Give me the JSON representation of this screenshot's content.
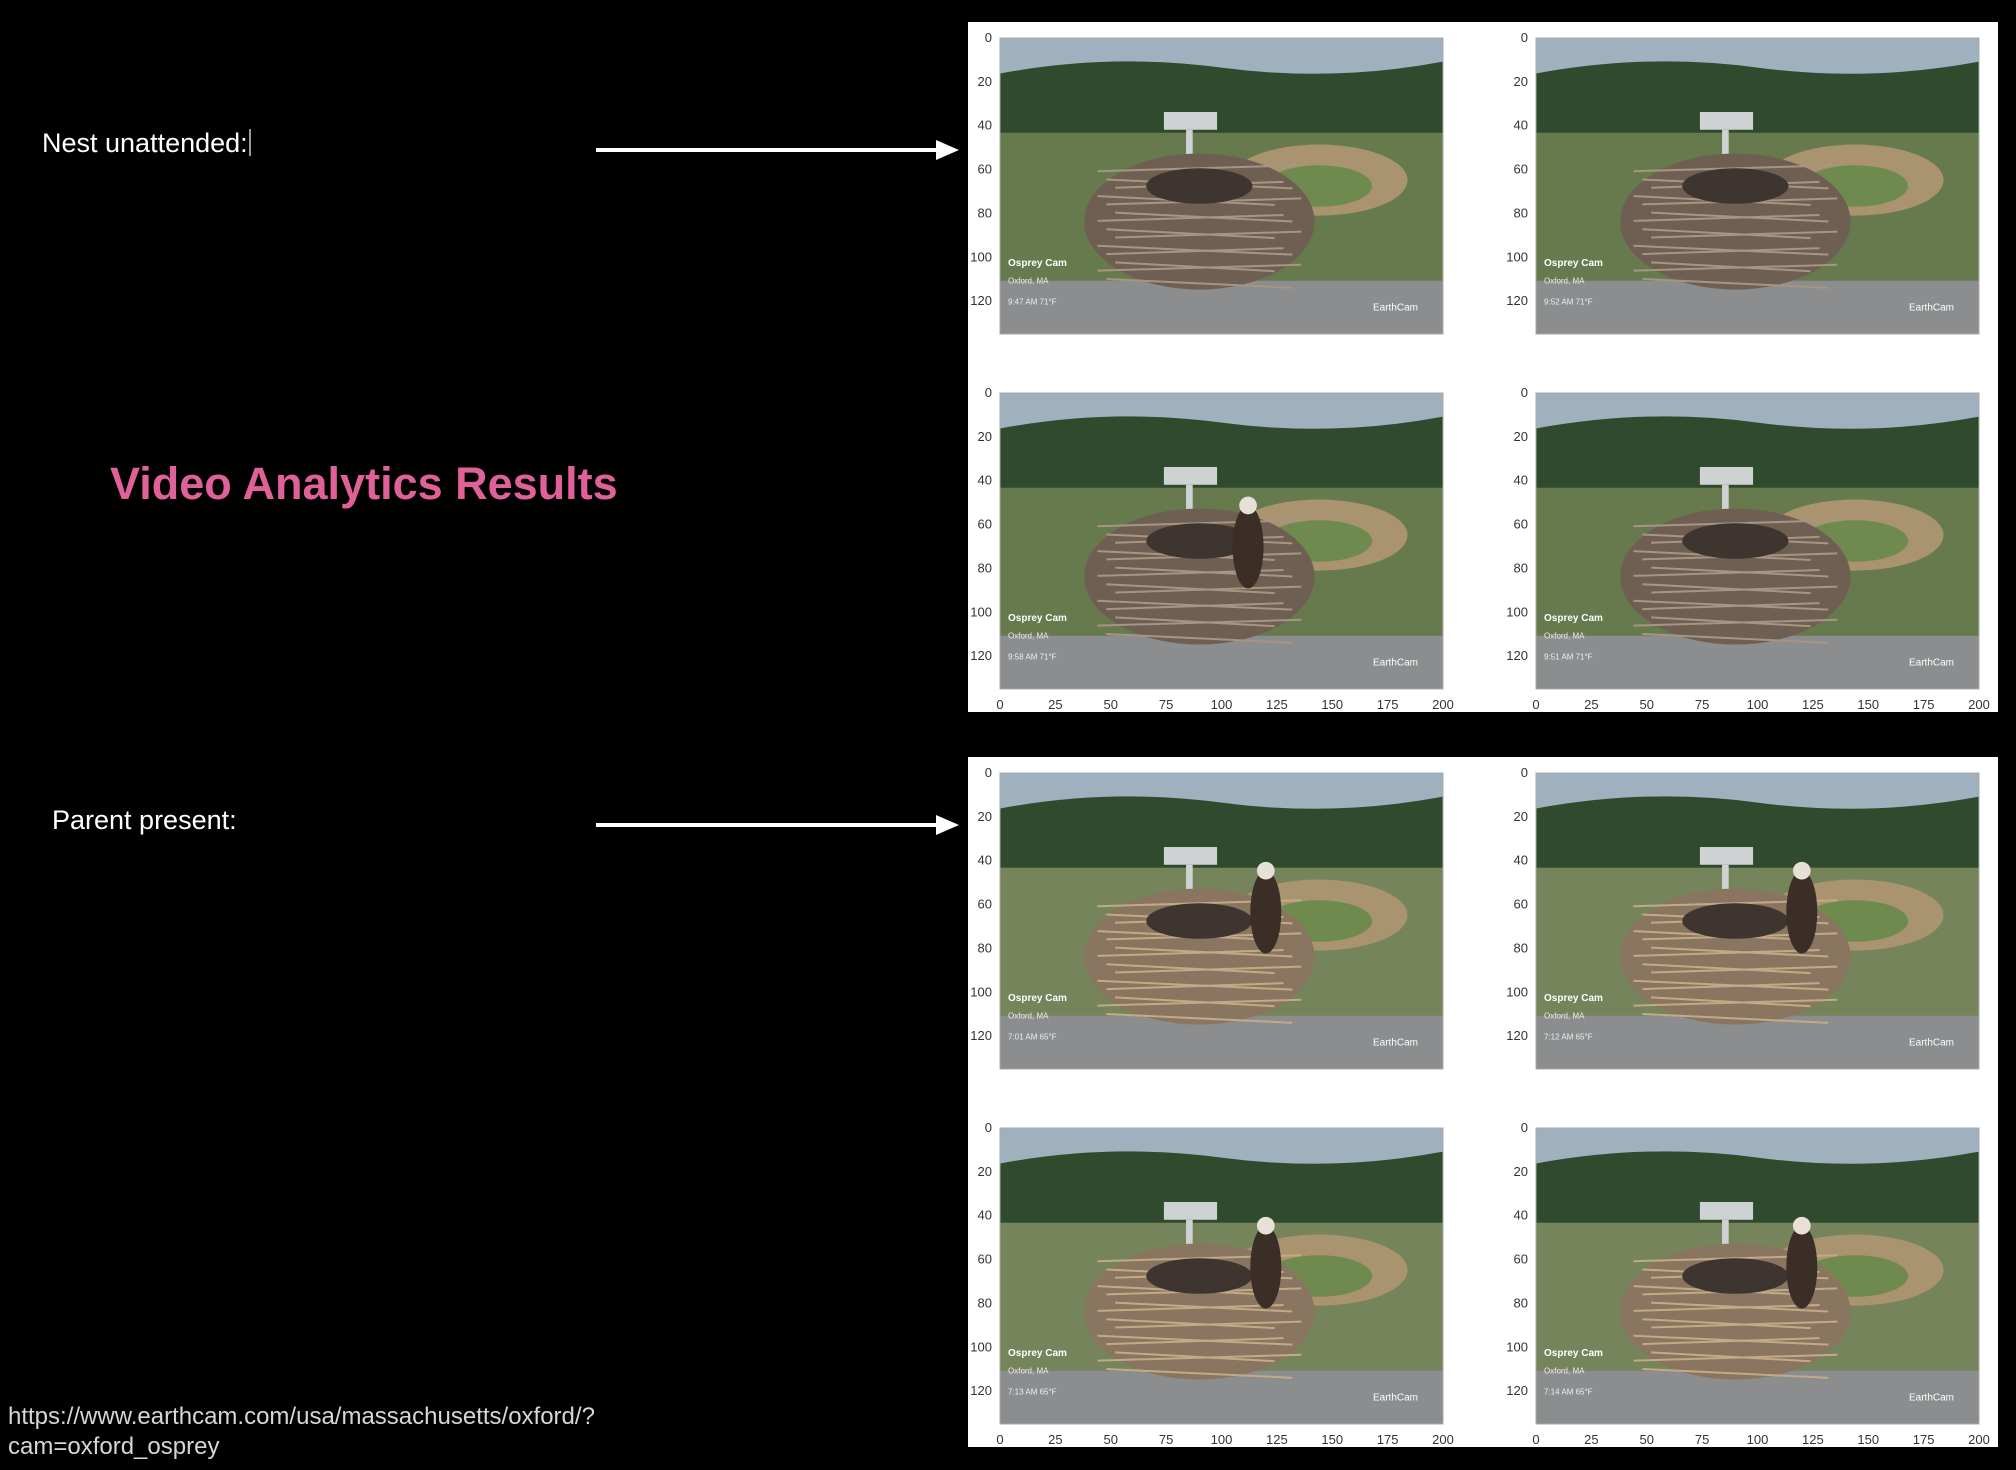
{
  "slide": {
    "title": "Video Analytics Results",
    "label_unattended": "Nest unattended:",
    "label_present": "Parent present:",
    "source_line1": "https://www.earthcam.com/usa/massachusetts/oxford/?",
    "source_line2": "cam=oxford_osprey"
  },
  "colors": {
    "title": "#e0619a",
    "background": "#000000",
    "text": "#ffffff"
  },
  "icons": [
    "right-arrow-icon",
    "right-arrow-icon"
  ],
  "chart_data": [
    {
      "type": "image-grid",
      "group": "unattended",
      "x_ticks": [
        0,
        25,
        50,
        75,
        100,
        125,
        150,
        175,
        200
      ],
      "y_ticks": [
        0,
        20,
        40,
        60,
        80,
        100,
        120
      ],
      "show_x_axis": true,
      "frames": [
        {
          "cam_label": "Osprey Cam",
          "location": "Oxford, MA",
          "time": "9:47 AM  71°F",
          "watermark": "EarthCam",
          "bird": false
        },
        {
          "cam_label": "Osprey Cam",
          "location": "Oxford, MA",
          "time": "9:52 AM  71°F",
          "watermark": "EarthCam",
          "bird": false
        },
        {
          "cam_label": "Osprey Cam",
          "location": "Oxford, MA",
          "time": "9:58 AM  71°F",
          "watermark": "EarthCam",
          "bird": true
        },
        {
          "cam_label": "Osprey Cam",
          "location": "Oxford, MA",
          "time": "9:51 AM  71°F",
          "watermark": "EarthCam",
          "bird": false
        }
      ]
    },
    {
      "type": "image-grid",
      "group": "present",
      "x_ticks": [
        0,
        25,
        50,
        75,
        100,
        125,
        150,
        175,
        200
      ],
      "y_ticks": [
        0,
        20,
        40,
        60,
        80,
        100,
        120
      ],
      "show_x_axis": true,
      "frames": [
        {
          "cam_label": "Osprey Cam",
          "location": "Oxford, MA",
          "time": "7:01 AM  65°F",
          "watermark": "EarthCam",
          "bird": true
        },
        {
          "cam_label": "Osprey Cam",
          "location": "Oxford, MA",
          "time": "7:12 AM  65°F",
          "watermark": "EarthCam",
          "bird": true
        },
        {
          "cam_label": "Osprey Cam",
          "location": "Oxford, MA",
          "time": "7:13 AM  65°F",
          "watermark": "EarthCam",
          "bird": true
        },
        {
          "cam_label": "Osprey Cam",
          "location": "Oxford, MA",
          "time": "7:14 AM  65°F",
          "watermark": "EarthCam",
          "bird": true
        }
      ]
    }
  ]
}
